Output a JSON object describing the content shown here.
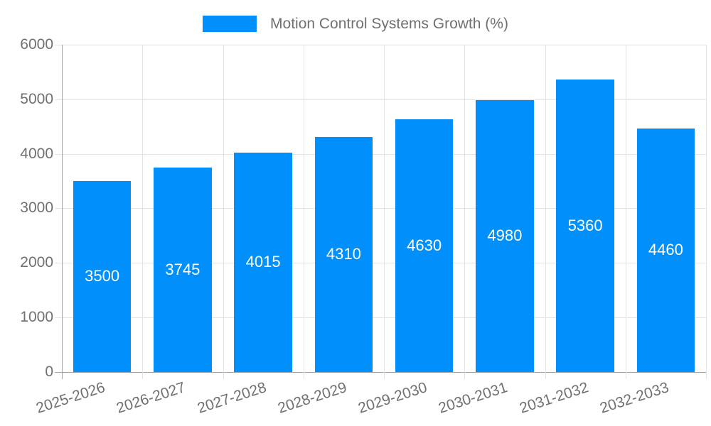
{
  "chart_data": {
    "type": "bar",
    "series_name": "Motion Control Systems Growth (%)",
    "categories": [
      "2025-2026",
      "2026-2027",
      "2027-2028",
      "2028-2029",
      "2029-2030",
      "2030-2031",
      "2031-2032",
      "2032-2033"
    ],
    "values": [
      3500,
      3745,
      4015,
      4310,
      4630,
      4980,
      5360,
      4460
    ],
    "ylim": [
      0,
      6000
    ],
    "yticks": [
      0,
      1000,
      2000,
      3000,
      4000,
      5000,
      6000
    ],
    "xlabel": "",
    "ylabel": "",
    "grid": true,
    "legend_position": "top-center",
    "x_label_rotation_deg": -18,
    "bar_label_position": "inside-center",
    "colors": {
      "bar": "#008FFB",
      "bar_label": "#FFFFFF",
      "grid_line": "#E3E3E3",
      "axis_line": "#A3A3A3",
      "tick_label": "#707070",
      "legend_text": "#707070",
      "background": "#FFFFFF"
    }
  }
}
